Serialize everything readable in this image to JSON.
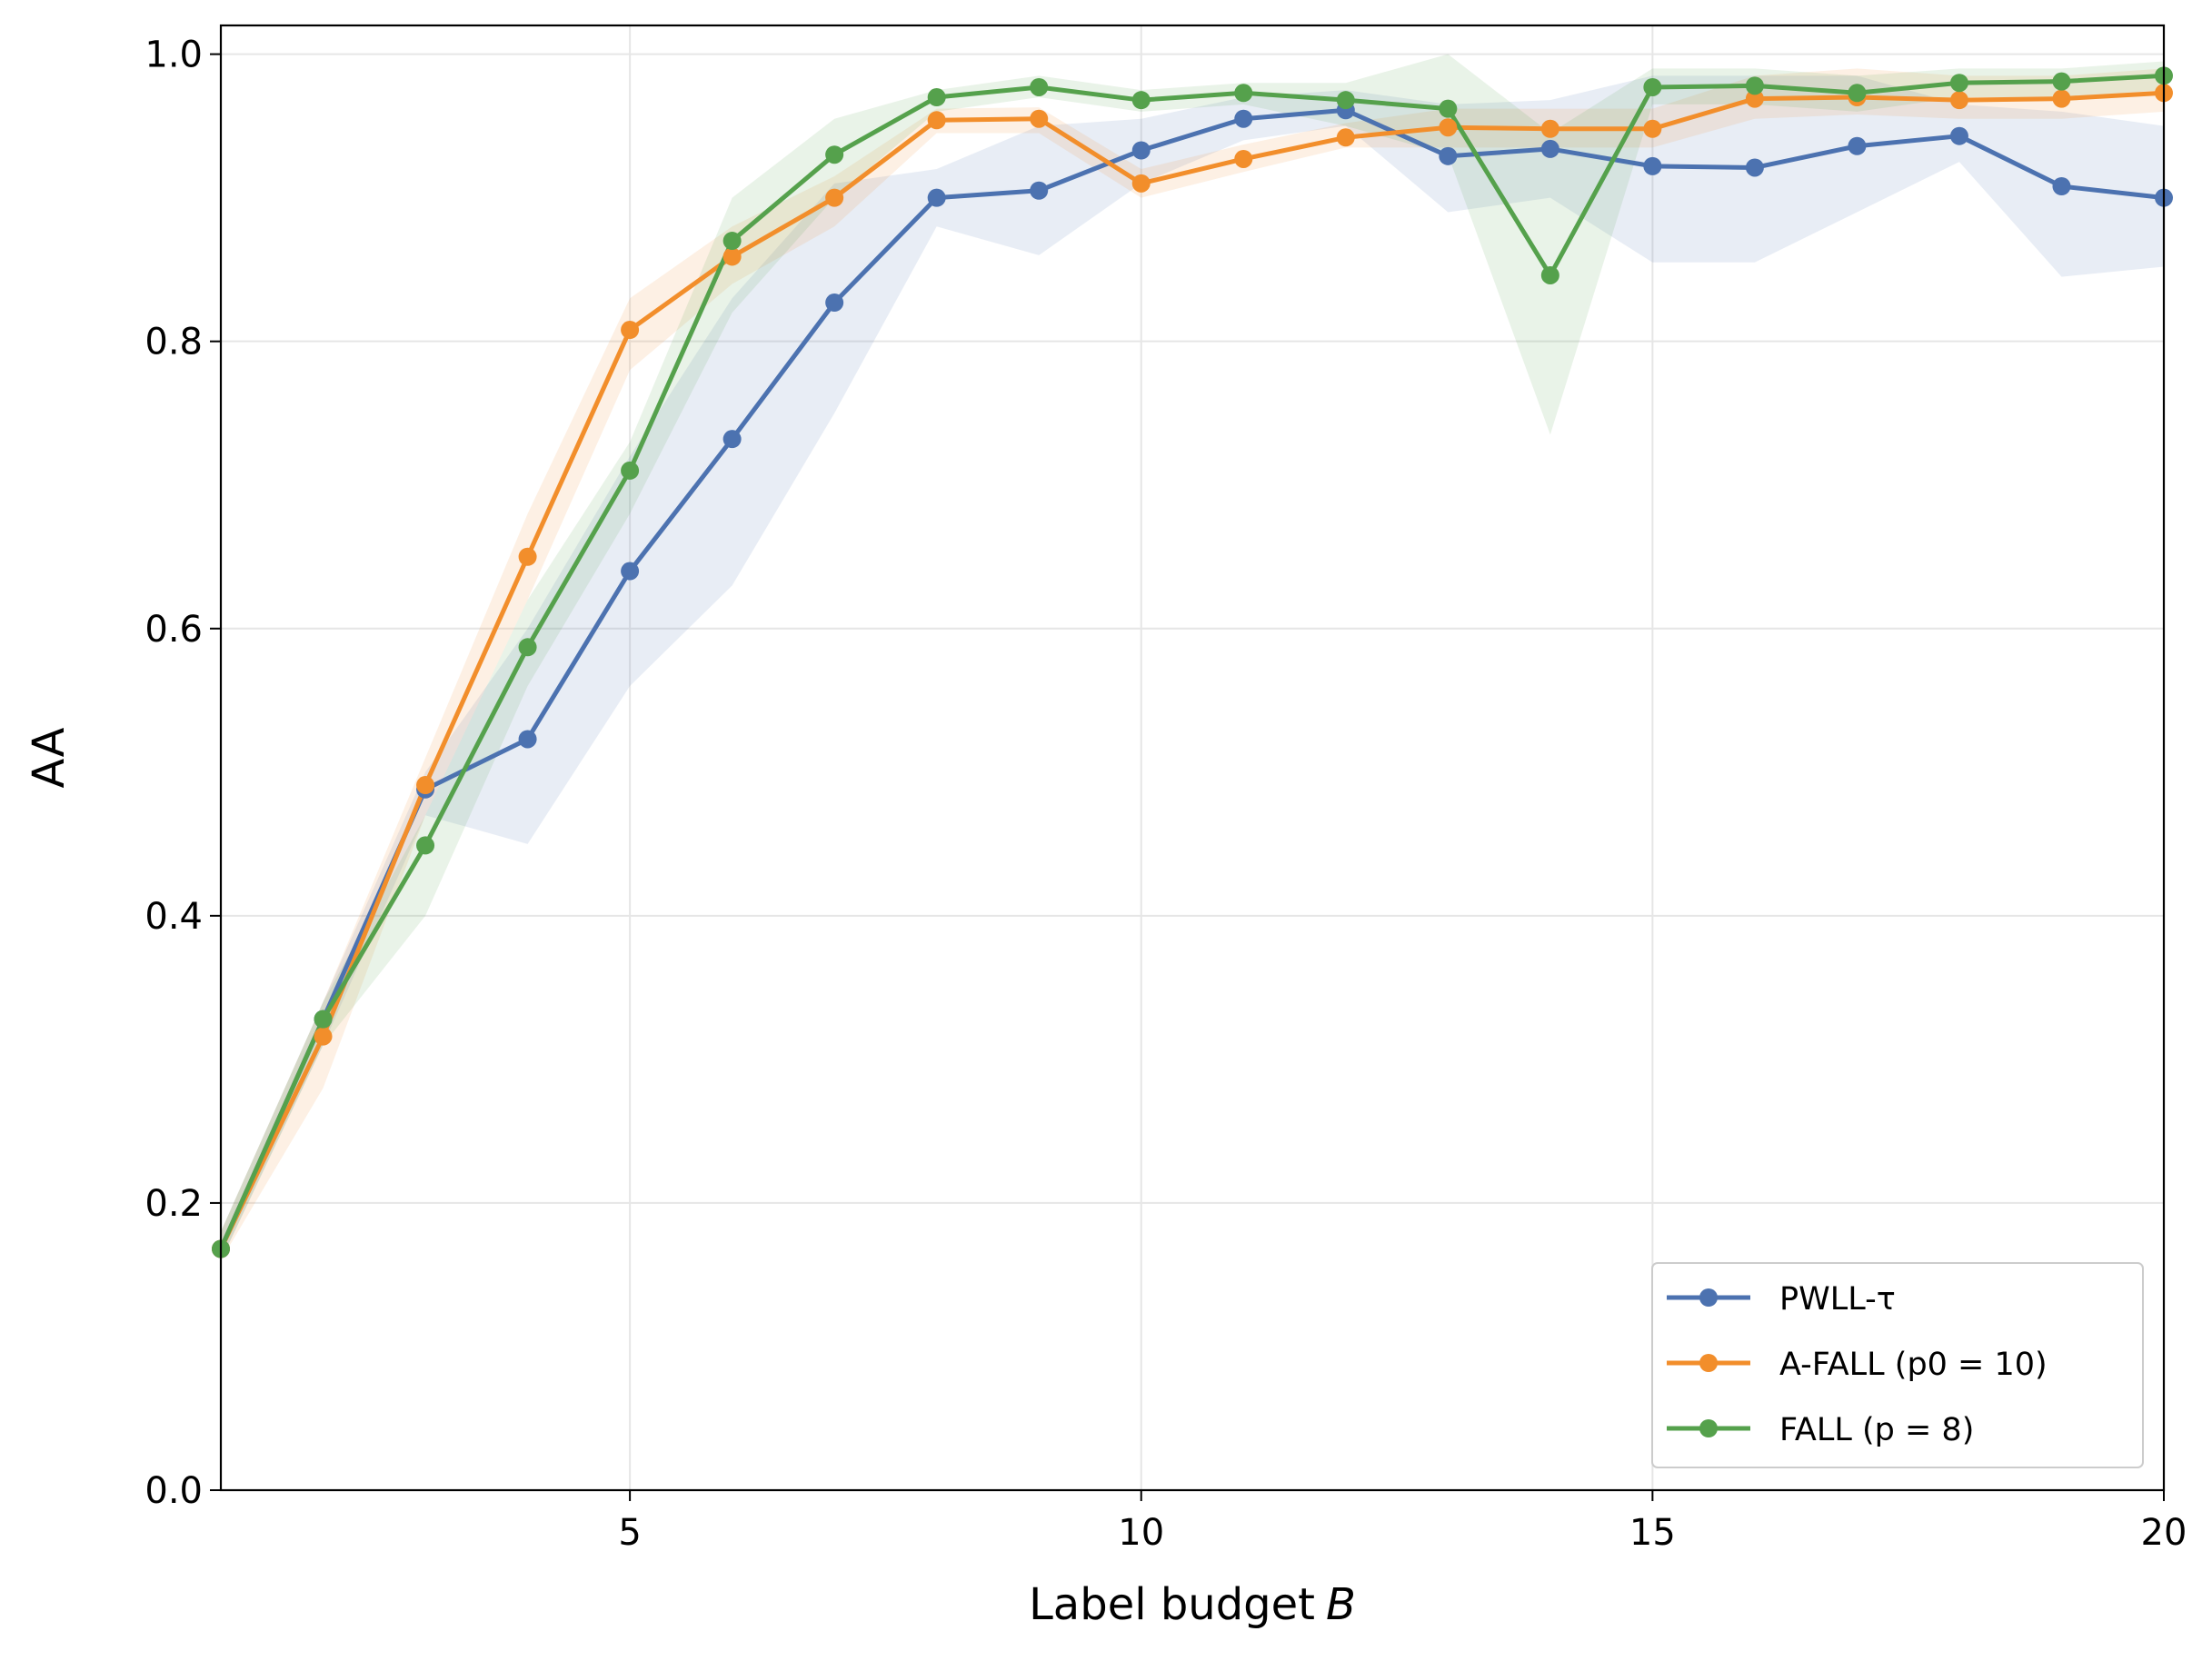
{
  "chart_data": {
    "type": "line",
    "title": "",
    "xlabel": "Label budget",
    "xlabel_var": "B",
    "ylabel": "AA",
    "xlim": [
      1,
      20
    ],
    "ylim": [
      0.0,
      1.02
    ],
    "xticks": [
      5,
      10,
      15,
      20
    ],
    "yticks": [
      0.0,
      0.2,
      0.4,
      0.6,
      0.8,
      1.0
    ],
    "xtick_labels": [
      "5",
      "10",
      "15",
      "20"
    ],
    "ytick_labels": [
      "0.0",
      "0.2",
      "0.4",
      "0.6",
      "0.8",
      "1.0"
    ],
    "grid": true,
    "legend_position": "bottom-right",
    "x": [
      1,
      2,
      3,
      4,
      5,
      6,
      7,
      8,
      9,
      10,
      11,
      12,
      13,
      14,
      15,
      16,
      17,
      18,
      19,
      20
    ],
    "series": [
      {
        "name": "PWLL-τ",
        "legend_label": "PWLL-τ",
        "color": "#4c72b0",
        "values": [
          0.168,
          0.328,
          0.488,
          0.523,
          0.64,
          0.732,
          0.827,
          0.9,
          0.905,
          0.933,
          0.955,
          0.961,
          0.929,
          0.934,
          0.922,
          0.921,
          0.936,
          0.943,
          0.908,
          0.9
        ],
        "band_low": [
          0.16,
          0.31,
          0.47,
          0.45,
          0.56,
          0.63,
          0.75,
          0.88,
          0.86,
          0.91,
          0.94,
          0.95,
          0.89,
          0.9,
          0.855,
          0.855,
          0.89,
          0.925,
          0.845,
          0.852
        ],
        "band_high": [
          0.18,
          0.34,
          0.5,
          0.6,
          0.72,
          0.83,
          0.91,
          0.92,
          0.95,
          0.955,
          0.97,
          0.975,
          0.965,
          0.968,
          0.985,
          0.985,
          0.985,
          0.965,
          0.96,
          0.95
        ]
      },
      {
        "name": "A-FALL (p0=10)",
        "legend_label": "A-FALL (p0 = 10)",
        "color": "#f28e2b",
        "values": [
          0.168,
          0.316,
          0.491,
          0.65,
          0.808,
          0.859,
          0.9,
          0.954,
          0.955,
          0.91,
          0.927,
          0.942,
          0.949,
          0.948,
          0.948,
          0.969,
          0.97,
          0.968,
          0.969,
          0.973
        ],
        "band_low": [
          0.16,
          0.28,
          0.47,
          0.62,
          0.78,
          0.84,
          0.88,
          0.945,
          0.945,
          0.9,
          0.918,
          0.935,
          0.935,
          0.935,
          0.935,
          0.955,
          0.958,
          0.955,
          0.955,
          0.96
        ],
        "band_high": [
          0.18,
          0.34,
          0.51,
          0.68,
          0.83,
          0.88,
          0.915,
          0.962,
          0.963,
          0.92,
          0.937,
          0.952,
          0.962,
          0.962,
          0.962,
          0.985,
          0.99,
          0.985,
          0.985,
          0.99
        ]
      },
      {
        "name": "FALL (p=8)",
        "legend_label": "FALL (p = 8)",
        "color": "#55a14c",
        "values": [
          0.168,
          0.328,
          0.449,
          0.587,
          0.71,
          0.87,
          0.93,
          0.97,
          0.977,
          0.968,
          0.973,
          0.968,
          0.962,
          0.846,
          0.977,
          0.978,
          0.973,
          0.98,
          0.981,
          0.985
        ],
        "band_low": [
          0.16,
          0.31,
          0.4,
          0.56,
          0.68,
          0.82,
          0.9,
          0.96,
          0.97,
          0.96,
          0.965,
          0.95,
          0.93,
          0.735,
          0.965,
          0.965,
          0.96,
          0.97,
          0.97,
          0.975
        ],
        "band_high": [
          0.18,
          0.34,
          0.47,
          0.62,
          0.73,
          0.9,
          0.955,
          0.975,
          0.985,
          0.975,
          0.98,
          0.98,
          1.0,
          0.945,
          0.99,
          0.99,
          0.985,
          0.99,
          0.99,
          0.995
        ]
      }
    ]
  }
}
